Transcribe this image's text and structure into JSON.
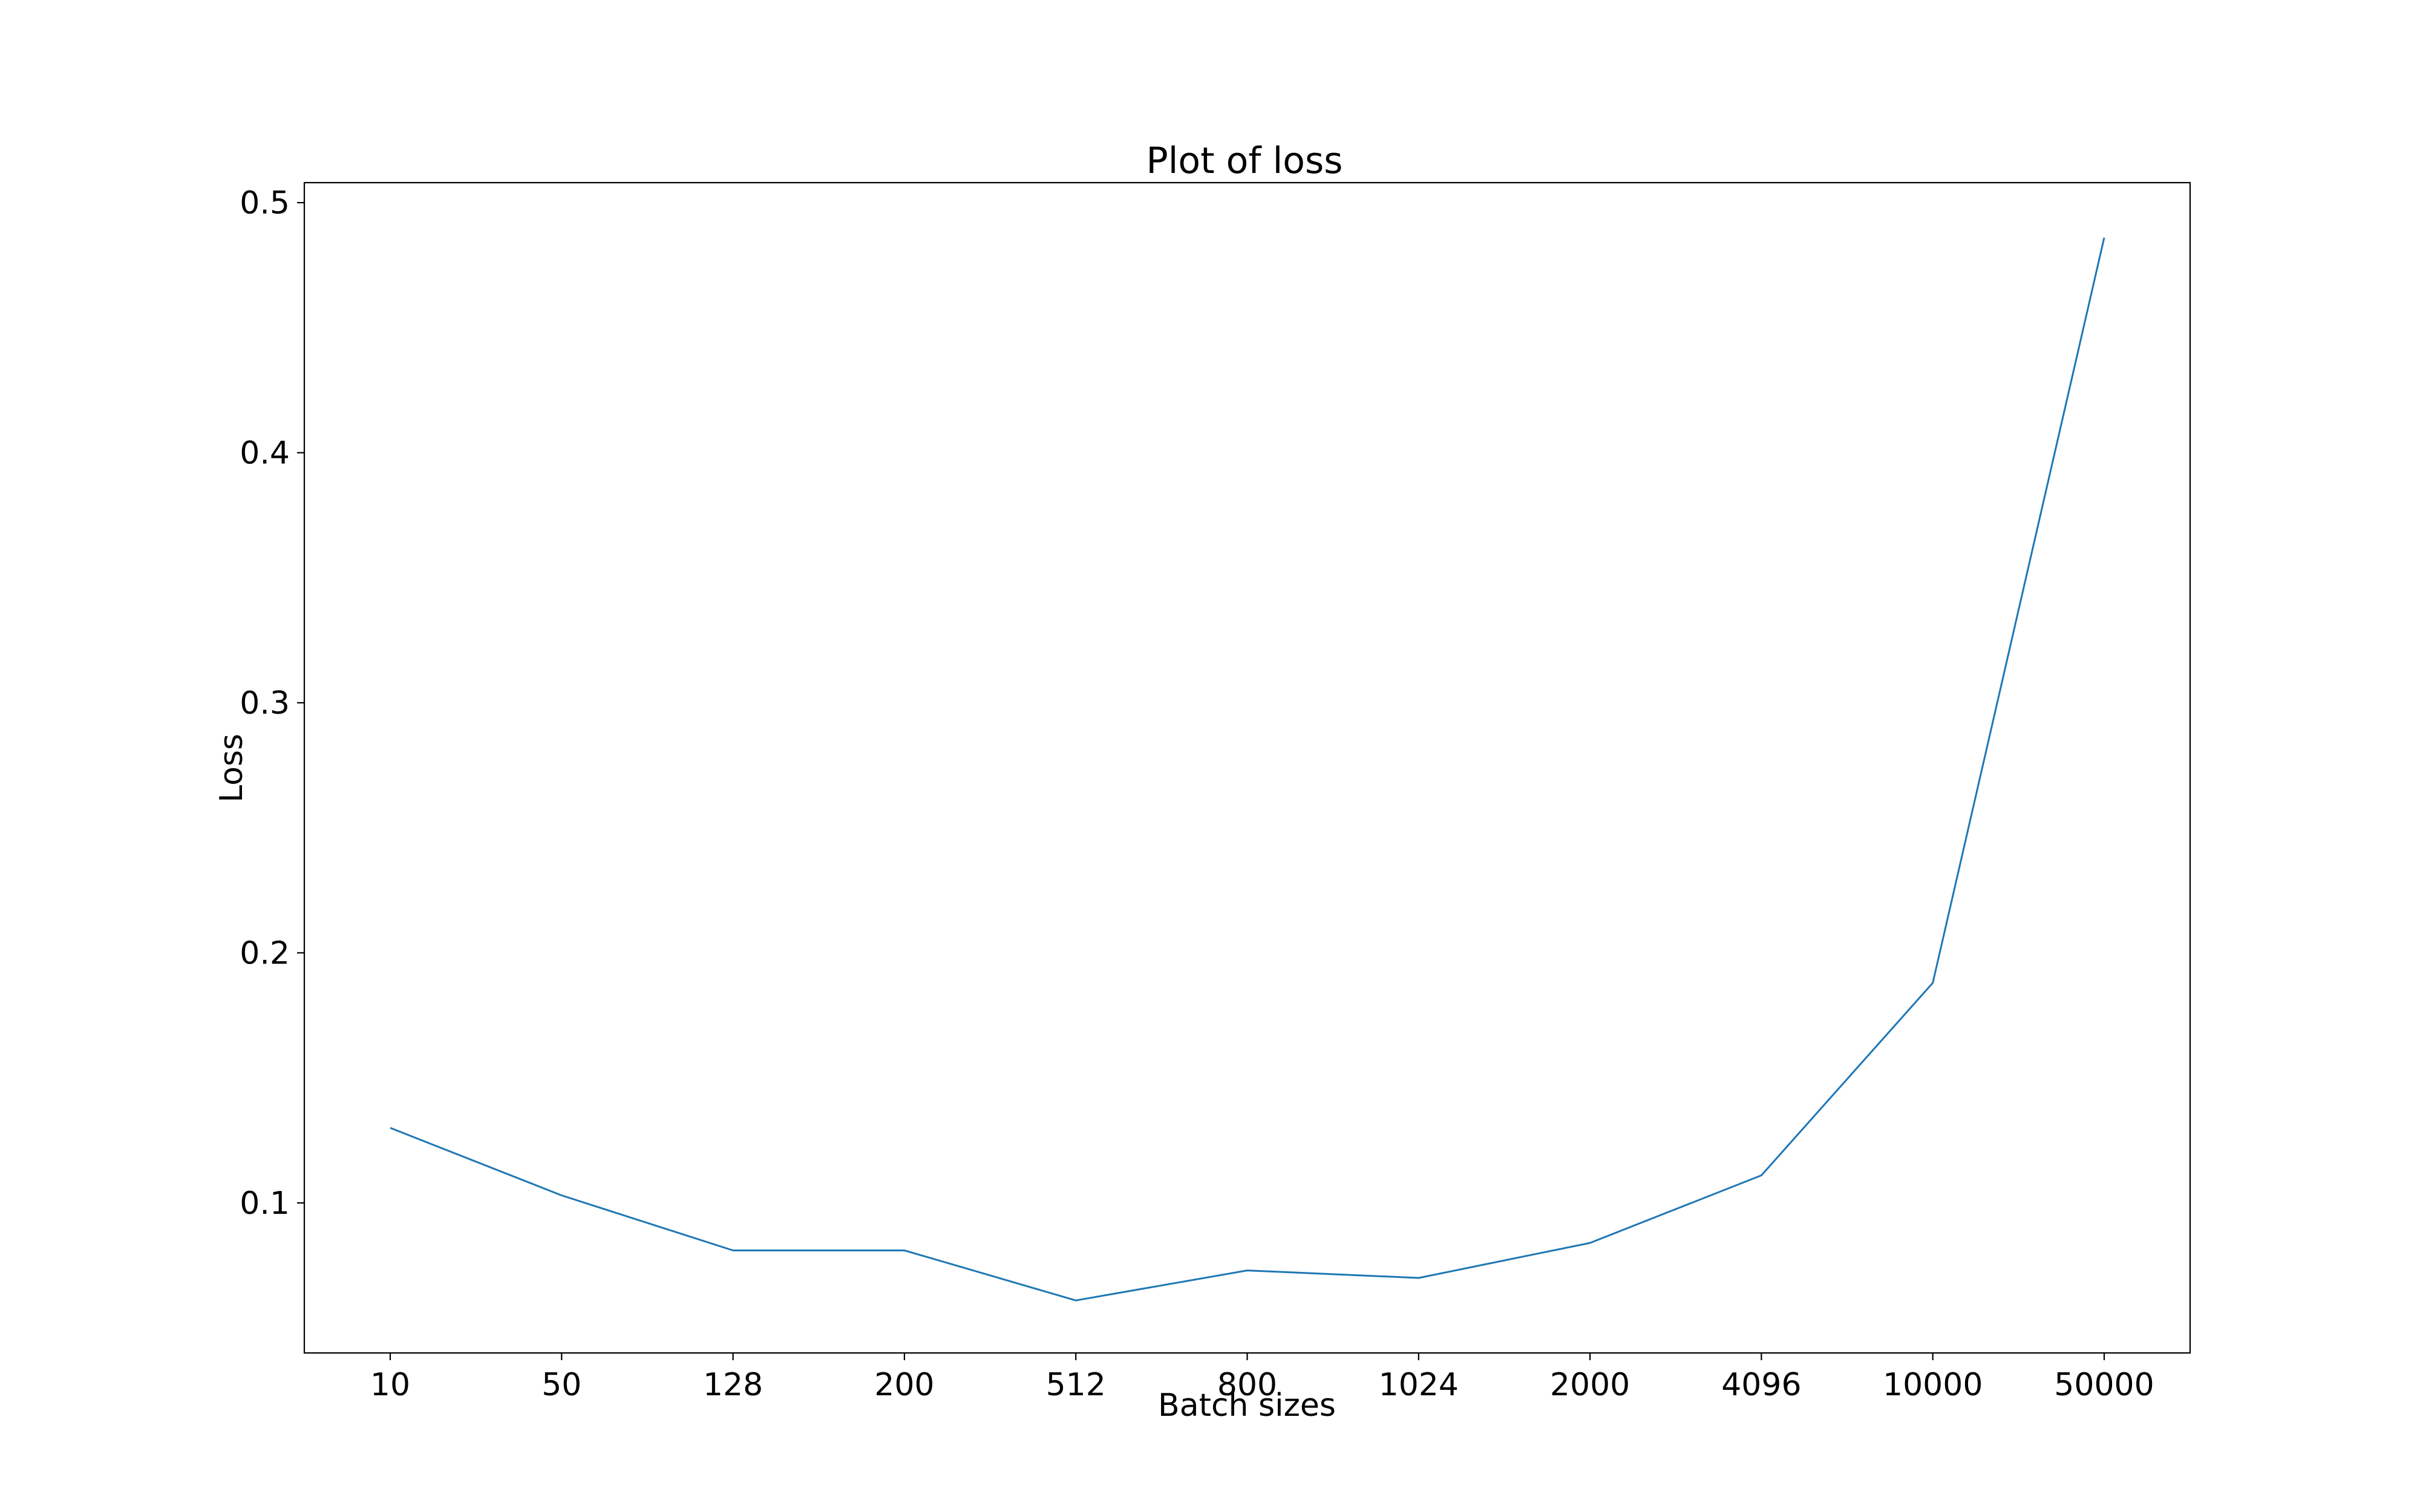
{
  "chart_data": {
    "type": "line",
    "title": "Plot of loss",
    "xlabel": "Batch sizes",
    "ylabel": "Loss",
    "categories": [
      "10",
      "50",
      "128",
      "200",
      "512",
      "800",
      "1024",
      "2000",
      "4096",
      "10000",
      "50000"
    ],
    "series": [
      {
        "color": "#1f77b4",
        "values": [
          0.13,
          0.103,
          0.081,
          0.081,
          0.061,
          0.073,
          0.07,
          0.084,
          0.111,
          0.188,
          0.486
        ]
      }
    ],
    "yticks": [
      "0.1",
      "0.2",
      "0.3",
      "0.4",
      "0.5"
    ],
    "ylim": [
      0.04,
      0.508
    ],
    "grid": false
  }
}
